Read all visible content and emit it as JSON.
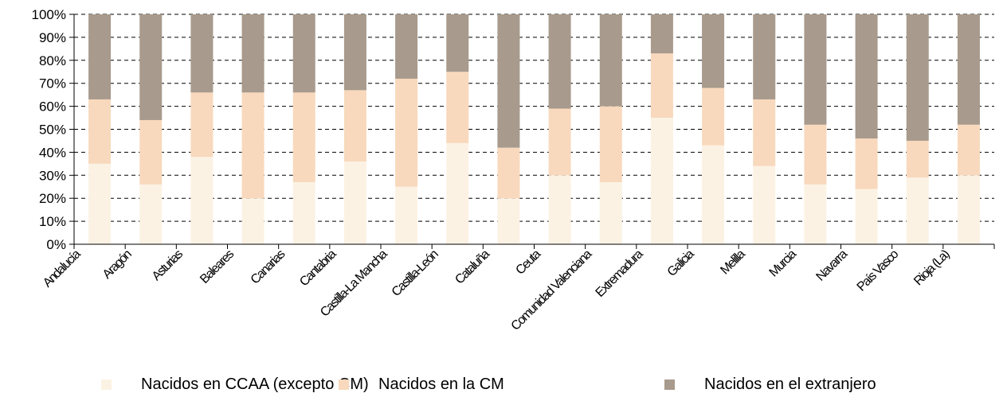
{
  "chart_data": {
    "type": "bar",
    "stacked": true,
    "categories": [
      "Andalucía",
      "Aragón",
      "Asturias",
      "Baleares",
      "Canarias",
      "Cantabria",
      "Castilla-La Mancha",
      "Castilla-León",
      "Cataluña",
      "Ceuta",
      "Comunidad Valenciana",
      "Extremadura",
      "Galicia",
      "Melilla",
      "Murcia",
      "Navarra",
      "País Vasco",
      "Rioja (La)"
    ],
    "series": [
      {
        "name": "Nacidos en CCAA (excepto CM)",
        "color": "#fcf2e4",
        "values": [
          35,
          26,
          38,
          20,
          27,
          36,
          25,
          44,
          20,
          30,
          27,
          55,
          43,
          34,
          26,
          24,
          29,
          30
        ]
      },
      {
        "name": "Nacidos en la CM",
        "color": "#f8d9bd",
        "values": [
          28,
          28,
          28,
          46,
          39,
          31,
          47,
          31,
          22,
          29,
          33,
          28,
          25,
          29,
          26,
          22,
          16,
          22
        ]
      },
      {
        "name": "Nacidos en el extranjero",
        "color": "#a89a8c",
        "values": [
          37,
          46,
          34,
          34,
          34,
          33,
          28,
          25,
          58,
          41,
          40,
          17,
          32,
          37,
          48,
          54,
          55,
          48
        ]
      }
    ],
    "y_ticks": [
      "0%",
      "10%",
      "20%",
      "30%",
      "40%",
      "50%",
      "60%",
      "70%",
      "80%",
      "90%",
      "100%"
    ],
    "ylim": [
      0,
      100
    ],
    "grid": "horizontal dashed",
    "legend_position": "bottom"
  }
}
